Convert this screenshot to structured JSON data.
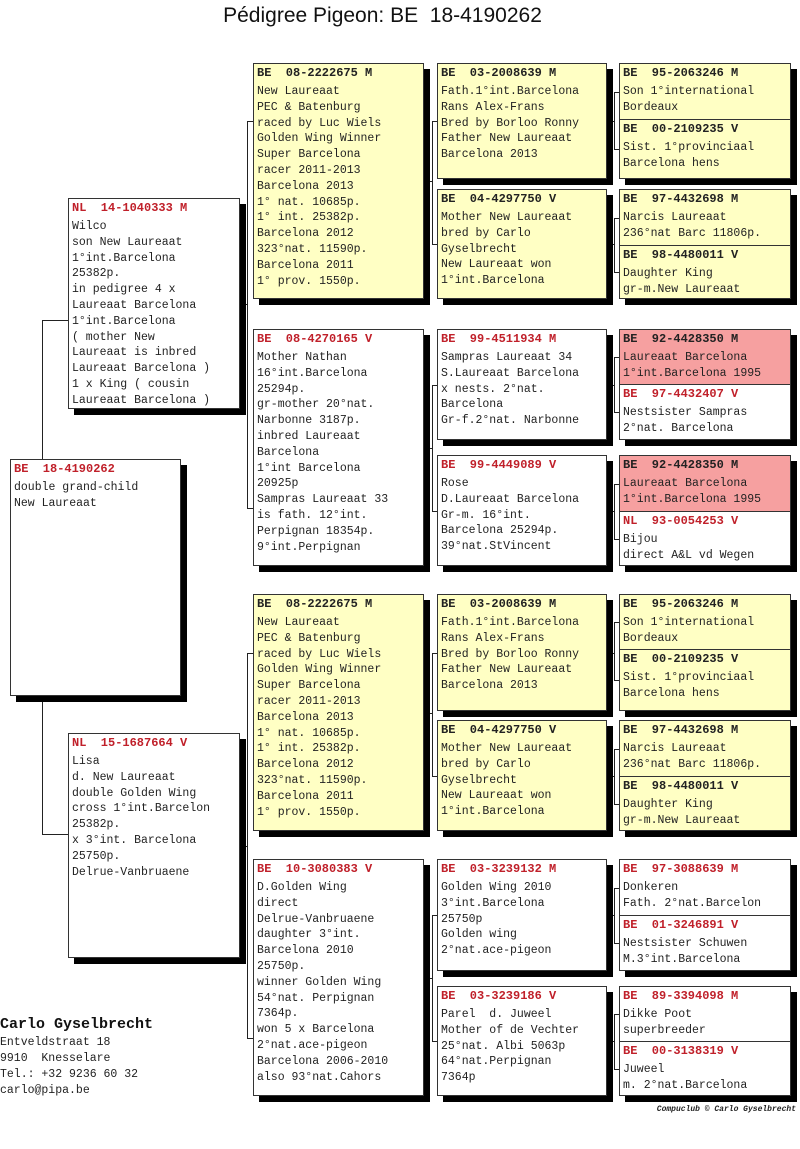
{
  "title": "Pédigree Pigeon: BE  18-4190262",
  "colors": {
    "highlight_yellow": "#ffffc4",
    "highlight_red": "#f6a0a0",
    "ring_red": "#c0202a"
  },
  "pigeons": {
    "subject": {
      "ring": "BE  18-4190262",
      "highlight": "none",
      "lines": [
        "double grand-child",
        "New Laureaat"
      ]
    },
    "sire": {
      "ring": "NL  14-1040333 M",
      "highlight": "none",
      "lines": [
        "Wilco",
        "son New Laureaat",
        "1°int.Barcelona",
        "25382p.",
        "in pedigree 4 x",
        "Laureaat Barcelona",
        "1°int.Barcelona",
        "( mother New",
        "Laureaat is inbred",
        "Laureaat Barcelona )",
        "1 x King ( cousin",
        "Laureaat Barcelona )"
      ]
    },
    "dam": {
      "ring": "NL  15-1687664 V",
      "highlight": "none",
      "lines": [
        "Lisa",
        "d. New Laureaat",
        "double Golden Wing",
        "cross 1°int.Barcelon",
        "25382p.",
        "x 3°int. Barcelona",
        "25750p.",
        "Delrue-Vanbruaene"
      ]
    },
    "ss": {
      "ring": "BE  08-2222675 M",
      "highlight": "yellow",
      "lines": [
        "New Laureaat",
        "PEC & Batenburg",
        "raced by Luc Wiels",
        "Golden Wing Winner",
        "Super Barcelona",
        "racer 2011-2013",
        "Barcelona 2013",
        "1° nat. 10685p.",
        "1° int. 25382p.",
        "Barcelona 2012",
        "323°nat. 11590p.",
        "Barcelona 2011",
        "1° prov. 1550p."
      ]
    },
    "sd": {
      "ring": "BE  08-4270165 V",
      "highlight": "none",
      "lines": [
        "Mother Nathan",
        "16°int.Barcelona",
        "25294p.",
        "gr-mother 20°nat.",
        "Narbonne 3187p.",
        "inbred Laureaat",
        "Barcelona",
        "1°int Barcelona",
        "20925p",
        "Sampras Laureaat 33",
        "is fath. 12°int.",
        "Perpignan 18354p.",
        "9°int.Perpignan"
      ]
    },
    "ds": {
      "ring": "BE  08-2222675 M",
      "highlight": "yellow",
      "lines": [
        "New Laureaat",
        "PEC & Batenburg",
        "raced by Luc Wiels",
        "Golden Wing Winner",
        "Super Barcelona",
        "racer 2011-2013",
        "Barcelona 2013",
        "1° nat. 10685p.",
        "1° int. 25382p.",
        "Barcelona 2012",
        "323°nat. 11590p.",
        "Barcelona 2011",
        "1° prov. 1550p."
      ]
    },
    "dd": {
      "ring": "BE  10-3080383 V",
      "highlight": "none",
      "lines": [
        "D.Golden Wing",
        "direct",
        "Delrue-Vanbruaene",
        "daughter 3°int.",
        "Barcelona 2010",
        "25750p.",
        "winner Golden Wing",
        "54°nat. Perpignan",
        "7364p.",
        "won 5 x Barcelona",
        "2°nat.ace-pigeon",
        "Barcelona 2006-2010",
        "also 93°nat.Cahors"
      ]
    },
    "sss": {
      "ring": "BE  03-2008639 M",
      "highlight": "yellow",
      "lines": [
        "Fath.1°int.Barcelona",
        "Rans Alex-Frans",
        "Bred by Borloo Ronny",
        "Father New Laureaat",
        "Barcelona 2013"
      ]
    },
    "ssd": {
      "ring": "BE  04-4297750 V",
      "highlight": "yellow",
      "lines": [
        "Mother New Laureaat",
        "bred by Carlo",
        "Gyselbrecht",
        "New Laureaat won",
        "1°int.Barcelona"
      ]
    },
    "sds": {
      "ring": "BE  99-4511934 M",
      "highlight": "none",
      "lines": [
        "Sampras Laureaat 34",
        "S.Laureaat Barcelona",
        "x nests. 2°nat.",
        "Barcelona",
        "Gr-f.2°nat. Narbonne"
      ]
    },
    "sdd": {
      "ring": "BE  99-4449089 V",
      "highlight": "none",
      "lines": [
        "Rose",
        "D.Laureaat Barcelona",
        "Gr-m. 16°int.",
        "Barcelona 25294p.",
        "39°nat.StVincent"
      ]
    },
    "dss": {
      "ring": "BE  03-2008639 M",
      "highlight": "yellow",
      "lines": [
        "Fath.1°int.Barcelona",
        "Rans Alex-Frans",
        "Bred by Borloo Ronny",
        "Father New Laureaat",
        "Barcelona 2013"
      ]
    },
    "dsd": {
      "ring": "BE  04-4297750 V",
      "highlight": "yellow",
      "lines": [
        "Mother New Laureaat",
        "bred by Carlo",
        "Gyselbrecht",
        "New Laureaat won",
        "1°int.Barcelona"
      ]
    },
    "dds": {
      "ring": "BE  03-3239132 M",
      "highlight": "none",
      "lines": [
        "Golden Wing 2010",
        "3°int.Barcelona",
        "25750p",
        "Golden wing",
        "2°nat.ace-pigeon"
      ]
    },
    "ddd": {
      "ring": "BE  03-3239186 V",
      "highlight": "none",
      "lines": [
        "Parel  d. Juweel",
        "Mother of de Vechter",
        "25°nat. Albi 5063p",
        "64°nat.Perpignan",
        "7364p"
      ]
    },
    "ssss": {
      "ring": "BE  95-2063246 M",
      "highlight": "yellow",
      "lines": [
        "Son 1°international",
        "Bordeaux"
      ]
    },
    "sssd": {
      "ring": "BE  00-2109235 V",
      "highlight": "yellow",
      "lines": [
        "Sist. 1°provinciaal",
        "Barcelona hens"
      ]
    },
    "ssds": {
      "ring": "BE  97-4432698 M",
      "highlight": "yellow",
      "lines": [
        "Narcis Laureaat",
        "236°nat Barc 11806p."
      ]
    },
    "ssdd": {
      "ring": "BE  98-4480011 V",
      "highlight": "yellow",
      "lines": [
        "Daughter King",
        "gr-m.New Laureaat"
      ]
    },
    "sdss": {
      "ring": "BE  92-4428350 M",
      "highlight": "red",
      "lines": [
        "Laureaat Barcelona",
        "1°int.Barcelona 1995"
      ]
    },
    "sdsd": {
      "ring": "BE  97-4432407 V",
      "highlight": "none",
      "lines": [
        "Nestsister Sampras",
        "2°nat. Barcelona"
      ]
    },
    "sdds": {
      "ring": "BE  92-4428350 M",
      "highlight": "red",
      "lines": [
        "Laureaat Barcelona",
        "1°int.Barcelona 1995"
      ]
    },
    "sddd": {
      "ring": "NL  93-0054253 V",
      "highlight": "none",
      "lines": [
        "Bijou",
        "direct A&L vd Wegen"
      ]
    },
    "dsss": {
      "ring": "BE  95-2063246 M",
      "highlight": "yellow",
      "lines": [
        "Son 1°international",
        "Bordeaux"
      ]
    },
    "dssd": {
      "ring": "BE  00-2109235 V",
      "highlight": "yellow",
      "lines": [
        "Sist. 1°provinciaal",
        "Barcelona hens"
      ]
    },
    "dsds": {
      "ring": "BE  97-4432698 M",
      "highlight": "yellow",
      "lines": [
        "Narcis Laureaat",
        "236°nat Barc 11806p."
      ]
    },
    "dsdd": {
      "ring": "BE  98-4480011 V",
      "highlight": "yellow",
      "lines": [
        "Daughter King",
        "gr-m.New Laureaat"
      ]
    },
    "ddss": {
      "ring": "BE  97-3088639 M",
      "highlight": "none",
      "lines": [
        "Donkeren",
        "Fath. 2°nat.Barcelon"
      ]
    },
    "ddsd": {
      "ring": "BE  01-3246891 V",
      "highlight": "none",
      "lines": [
        "Nestsister Schuwen",
        "M.3°int.Barcelona"
      ]
    },
    "ddds": {
      "ring": "BE  89-3394098 M",
      "highlight": "none",
      "lines": [
        "Dikke Poot",
        "superbreeder"
      ]
    },
    "dddd": {
      "ring": "BE  00-3138319 V",
      "highlight": "none",
      "lines": [
        "Juweel",
        "m. 2°nat.Barcelona"
      ]
    }
  },
  "breeder": {
    "name": "Carlo Gyselbrecht",
    "street": "Entveldstraat 18",
    "city": "9910  Knesselare",
    "phone": "Tel.: +32 9236 60 32",
    "email": "carlo@pipa.be"
  },
  "credit": "Compuclub © Carlo Gyselbrecht"
}
